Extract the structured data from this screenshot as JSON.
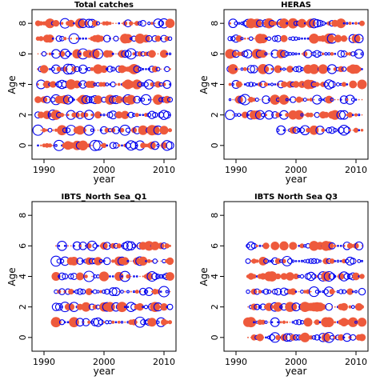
{
  "chart_data": [
    {
      "type": "scatter",
      "title": "Total catches",
      "xlabel": "year",
      "ylabel": "Age",
      "xlim": [
        1988,
        2012
      ],
      "ylim": [
        -0.9,
        8.9
      ],
      "xticks": [
        1990,
        2000,
        2010
      ],
      "yticks": [
        0,
        2,
        4,
        6,
        8
      ],
      "years": [
        1989,
        2011
      ],
      "ages": [
        0,
        8
      ]
    },
    {
      "type": "scatter",
      "title": "HERAS",
      "xlabel": "year",
      "ylabel": "Age",
      "xlim": [
        1988,
        2012
      ],
      "ylim": [
        -0.9,
        8.9
      ],
      "xticks": [
        1990,
        2000,
        2010
      ],
      "yticks": [
        0,
        2,
        4,
        6,
        8
      ],
      "years": [
        1989,
        2011
      ],
      "ages": [
        1,
        8
      ],
      "age1_years": [
        1997,
        2011
      ]
    },
    {
      "type": "scatter",
      "title": "IBTS_North Sea_Q1",
      "xlabel": "year",
      "ylabel": "Age",
      "xlim": [
        1988,
        2012
      ],
      "ylim": [
        -0.9,
        8.9
      ],
      "xticks": [
        1990,
        2000,
        2010
      ],
      "yticks": [
        0,
        2,
        4,
        6,
        8
      ],
      "years": [
        1992,
        2011
      ],
      "ages": [
        1,
        6
      ]
    },
    {
      "type": "scatter",
      "title": "IBTS North Sea Q3",
      "xlabel": "year",
      "ylabel": "Age",
      "xlim": [
        1988,
        2012
      ],
      "ylim": [
        -0.9,
        8.9
      ],
      "xticks": [
        1990,
        2000,
        2010
      ],
      "yticks": [
        0,
        2,
        4,
        6,
        8
      ],
      "years": [
        1992,
        2011
      ],
      "ages": [
        0,
        6
      ]
    }
  ],
  "colors": {
    "positive_fill": "#ee5a3c",
    "negative_stroke": "#0000ee",
    "axis": "#000000"
  }
}
